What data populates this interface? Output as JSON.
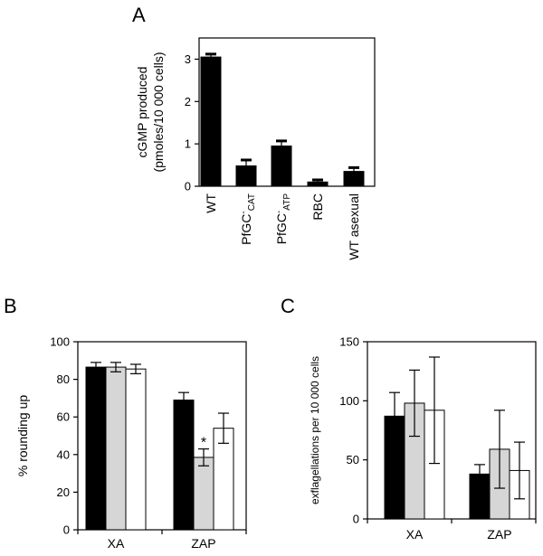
{
  "chart_data": [
    {
      "panel": "A",
      "type": "bar",
      "ylabel_line1": "cGMP produced",
      "ylabel_line2": "(pmoles/10 000 cells)",
      "ylim": [
        0,
        3.5
      ],
      "yticks": [
        0,
        1,
        2,
        3
      ],
      "categories": [
        {
          "main": "WT",
          "sup": "",
          "sub": ""
        },
        {
          "main": "PfGC",
          "sup": "-",
          "sub": "CAT"
        },
        {
          "main": "PfGC",
          "sup": "-",
          "sub": "ATP"
        },
        {
          "main": "RBC",
          "sup": "",
          "sub": ""
        },
        {
          "main": "WT asexual",
          "sup": "",
          "sub": ""
        }
      ],
      "values": [
        3.05,
        0.48,
        0.95,
        0.1,
        0.35
      ],
      "errors": [
        0.08,
        0.15,
        0.13,
        0.06,
        0.1
      ],
      "colors": [
        "#000000"
      ]
    },
    {
      "panel": "B",
      "type": "bar",
      "ylabel": "% rounding up",
      "ylim": [
        0,
        100
      ],
      "yticks": [
        0,
        20,
        40,
        60,
        80,
        100
      ],
      "categories": [
        "XA",
        "ZAP"
      ],
      "series": [
        {
          "values": [
            86.5,
            69
          ],
          "errors": [
            2.5,
            4
          ]
        },
        {
          "values": [
            86.5,
            38.5
          ],
          "errors": [
            2.5,
            4.5
          ]
        },
        {
          "values": [
            85.5,
            54
          ],
          "errors": [
            2.5,
            8
          ]
        }
      ],
      "colors": [
        "#000000",
        "#d6d6d6",
        "#ffffff"
      ],
      "annotation": "*"
    },
    {
      "panel": "C",
      "type": "bar",
      "ylabel": "exflagellations per 10 000 cells",
      "ylim": [
        0,
        150
      ],
      "yticks": [
        0,
        50,
        100,
        150
      ],
      "categories": [
        "XA",
        "ZAP"
      ],
      "series": [
        {
          "values": [
            87,
            38
          ],
          "errors": [
            20,
            8
          ]
        },
        {
          "values": [
            98,
            59
          ],
          "errors": [
            28,
            33
          ]
        },
        {
          "values": [
            92,
            41
          ],
          "errors": [
            45,
            24
          ]
        }
      ],
      "colors": [
        "#000000",
        "#d6d6d6",
        "#ffffff"
      ]
    }
  ]
}
